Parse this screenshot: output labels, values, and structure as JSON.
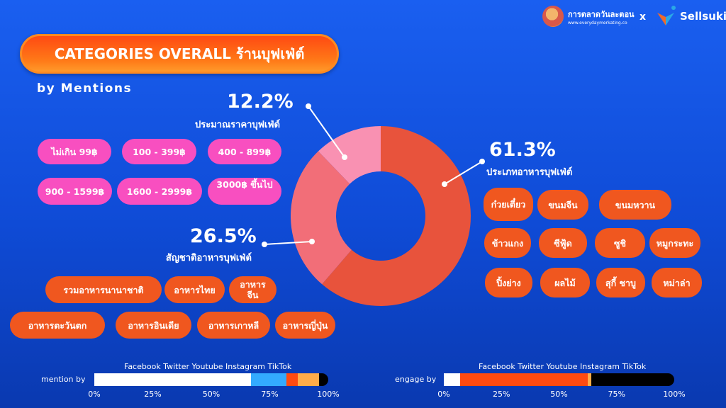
{
  "header": {
    "brand_name": "การตลาดวันละตอน",
    "brand_url": "www.everydaymerkating.co",
    "separator": "x",
    "partner": "Sellsuki"
  },
  "title": "CATEGORIES OVERALL ร้านบุฟเฟ่ต์",
  "subtitle": "by Mentions",
  "colors": {
    "slice_food_type": "#e8533c",
    "slice_nationality": "#f26e78",
    "slice_price": "#f991b2",
    "pink_pill": "#f84fc0",
    "orange_pill": "#f0571f",
    "title_pill": "#ff5a14"
  },
  "chart_data": {
    "type": "pie",
    "donut": true,
    "slices": [
      {
        "label": "ประเภทอาหารบุฟเฟ่ต์",
        "value": 61.3,
        "display": "61.3%"
      },
      {
        "label": "สัญชาติอาหารบุฟเฟ่ต์",
        "value": 26.5,
        "display": "26.5%"
      },
      {
        "label": "ประมาณราคาบุฟเฟ่ต์",
        "value": 12.2,
        "display": "12.2%"
      }
    ]
  },
  "price_pills": [
    "ไม่เกิน 99฿",
    "100 - 399฿",
    "400 - 899฿",
    "900 - 1599฿",
    "1600 - 2999฿",
    "3000฿ ขึ้นไป"
  ],
  "nationality_pills": [
    "รวมอาหารนานาชาติ",
    "อาหารไทย",
    "อาหาร จีน",
    "อาหารตะวันตก",
    "อาหารอินเดีย",
    "อาหารเกาหลี",
    "อาหารญี่ปุ่น"
  ],
  "food_type_pills": [
    "ก๋วยเตี๋ยว",
    "ขนมจีน",
    "ขนมหวาน",
    "ข้าวแกง",
    "ซีฟู้ด",
    "ซูชิ",
    "หมูกระทะ",
    "ปิ้งย่าง",
    "ผลไม้",
    "สุกี้ ชาบู",
    "หม่าล่า"
  ],
  "mention_bar": {
    "label": "mention by",
    "legend": "Facebook Twitter Youtube Instagram TikTok",
    "ticks": [
      "0%",
      "25%",
      "50%",
      "75%",
      "100%"
    ],
    "segments": [
      {
        "name": "Facebook",
        "percent": 67,
        "color": "#ffffff"
      },
      {
        "name": "Twitter",
        "percent": 15,
        "color": "#33aaff"
      },
      {
        "name": "Youtube",
        "percent": 5,
        "color": "#ff4a10"
      },
      {
        "name": "Instagram",
        "percent": 9,
        "color": "#ffac48"
      },
      {
        "name": "TikTok",
        "percent": 4,
        "color": "#000000"
      }
    ]
  },
  "engage_bar": {
    "label": "engage by",
    "legend": "Facebook Twitter Youtube Instagram TikTok",
    "ticks": [
      "0%",
      "25%",
      "50%",
      "75%",
      "100%"
    ],
    "segments": [
      {
        "name": "Facebook",
        "percent": 7,
        "color": "#ffffff"
      },
      {
        "name": "Twitter",
        "percent": 0,
        "color": "#33aaff"
      },
      {
        "name": "Youtube",
        "percent": 55.5,
        "color": "#ff4a10"
      },
      {
        "name": "Instagram",
        "percent": 1.5,
        "color": "#ffac48"
      },
      {
        "name": "TikTok",
        "percent": 36,
        "color": "#000000"
      }
    ]
  }
}
